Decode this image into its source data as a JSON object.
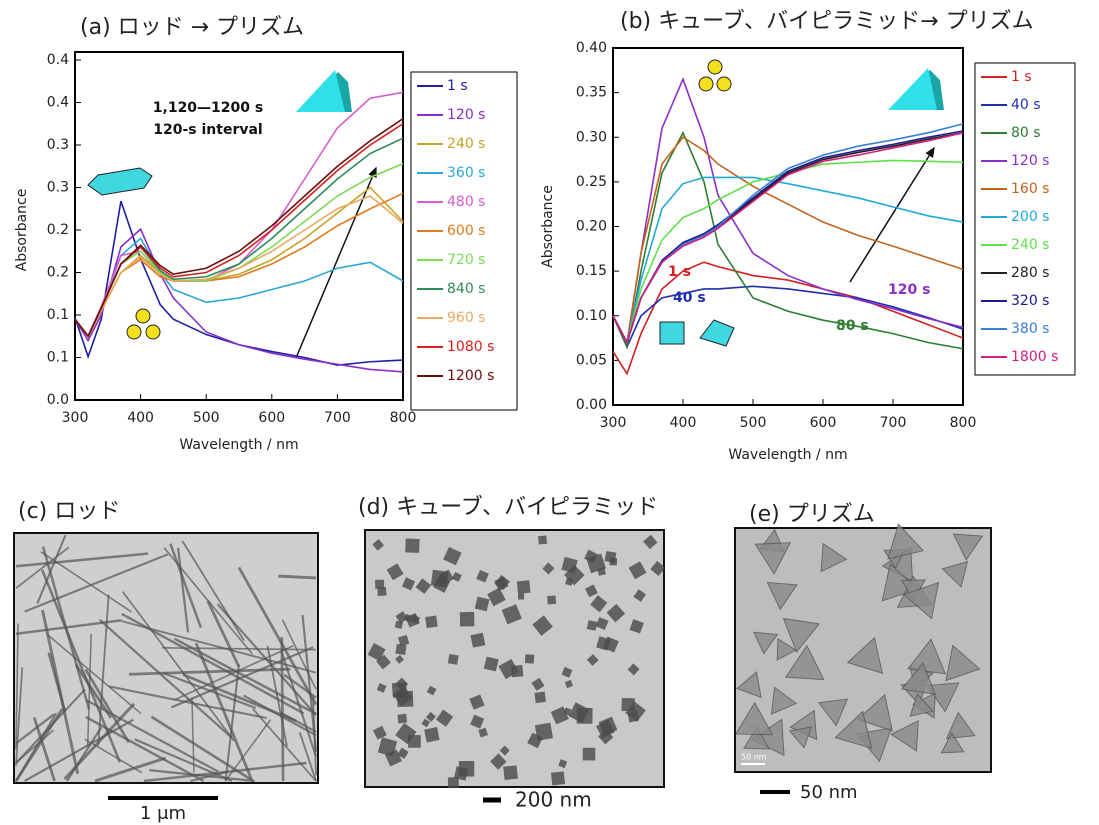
{
  "chart_data": [
    {
      "type": "line",
      "title": "(a) ロッド → プリズム",
      "x_label": "Wavelength / nm",
      "y_label": "Absorbance",
      "x": [
        300,
        320,
        340,
        370,
        400,
        430,
        450,
        500,
        550,
        600,
        650,
        700,
        750,
        800
      ],
      "xlim": [
        300,
        800
      ],
      "xticks": [
        300,
        400,
        500,
        600,
        700,
        800
      ],
      "ylim": [
        0,
        0.4
      ],
      "yticks": [
        {
          "value": 0,
          "label": "0.0"
        },
        {
          "value": 0.05,
          "label": "0.1"
        },
        0.1,
        {
          "value": 0.15,
          "label": "0.2"
        },
        0.2,
        {
          "value": 0.25,
          "label": "0.3"
        },
        0.3,
        {
          "value": 0.35,
          "label": "0.4"
        },
        0.4
      ],
      "series": [
        {
          "name": "1 s",
          "color": "#1f1fa0",
          "values": [
            0.097,
            0.051,
            0.095,
            0.234,
            0.166,
            0.112,
            0.095,
            0.077,
            0.065,
            0.057,
            0.05,
            0.041,
            0.045,
            0.047
          ]
        },
        {
          "name": "120 s",
          "color": "#8b2fc9",
          "values": [
            0.095,
            0.07,
            0.1,
            0.18,
            0.201,
            0.148,
            0.12,
            0.08,
            0.065,
            0.055,
            0.048,
            0.042,
            0.036,
            0.033
          ]
        },
        {
          "name": "240 s",
          "color": "#c9a227",
          "values": [
            0.095,
            0.075,
            0.105,
            0.15,
            0.17,
            0.15,
            0.14,
            0.14,
            0.148,
            0.165,
            0.19,
            0.22,
            0.25,
            0.21
          ]
        },
        {
          "name": "360 s",
          "color": "#2aa7d6",
          "values": [
            0.095,
            0.075,
            0.105,
            0.17,
            0.19,
            0.15,
            0.13,
            0.115,
            0.12,
            0.13,
            0.14,
            0.155,
            0.162,
            0.14
          ]
        },
        {
          "name": "480 s",
          "color": "#d65ccf",
          "values": [
            0.095,
            0.075,
            0.11,
            0.17,
            0.175,
            0.15,
            0.14,
            0.14,
            0.16,
            0.2,
            0.26,
            0.32,
            0.355,
            0.362
          ]
        },
        {
          "name": "600 s",
          "color": "#e07b20",
          "values": [
            0.095,
            0.075,
            0.105,
            0.15,
            0.165,
            0.145,
            0.14,
            0.14,
            0.145,
            0.16,
            0.18,
            0.205,
            0.225,
            0.243
          ]
        },
        {
          "name": "720 s",
          "color": "#7ed957",
          "values": [
            0.095,
            0.075,
            0.108,
            0.16,
            0.175,
            0.15,
            0.14,
            0.14,
            0.155,
            0.18,
            0.21,
            0.24,
            0.262,
            0.278
          ]
        },
        {
          "name": "840 s",
          "color": "#2e8b57",
          "values": [
            0.095,
            0.075,
            0.108,
            0.16,
            0.18,
            0.152,
            0.142,
            0.145,
            0.16,
            0.19,
            0.225,
            0.26,
            0.29,
            0.308
          ]
        },
        {
          "name": "960 s",
          "color": "#e8a860",
          "values": [
            0.095,
            0.075,
            0.105,
            0.15,
            0.168,
            0.148,
            0.14,
            0.142,
            0.155,
            0.175,
            0.2,
            0.225,
            0.24,
            0.208
          ]
        },
        {
          "name": "1080 s",
          "color": "#d42020",
          "values": [
            0.095,
            0.075,
            0.108,
            0.16,
            0.18,
            0.155,
            0.145,
            0.15,
            0.17,
            0.2,
            0.235,
            0.27,
            0.3,
            0.325
          ]
        },
        {
          "name": "1200 s",
          "color": "#6b1010",
          "values": [
            0.095,
            0.075,
            0.108,
            0.16,
            0.182,
            0.158,
            0.148,
            0.155,
            0.175,
            0.205,
            0.24,
            0.275,
            0.305,
            0.331
          ]
        }
      ],
      "annotations": [
        {
          "text": "1,120—1200 s",
          "color": "#111111"
        },
        {
          "text": "120-s interval",
          "color": "#111111"
        }
      ]
    },
    {
      "type": "line",
      "title": "(b) キューブ、バイピラミッド→ プリズム",
      "x_label": "Wavelength / nm",
      "y_label": "Absorbance",
      "x": [
        300,
        320,
        340,
        370,
        400,
        430,
        450,
        500,
        550,
        600,
        650,
        700,
        750,
        800
      ],
      "xlim": [
        300,
        800
      ],
      "xticks": [
        300,
        400,
        500,
        600,
        700,
        800
      ],
      "ylim": [
        0,
        0.4
      ],
      "yticks": [
        {
          "value": 0,
          "label": "0.00"
        },
        0.05,
        {
          "value": 0.1,
          "label": "0.10"
        },
        0.15,
        {
          "value": 0.2,
          "label": "0.20"
        },
        0.25,
        {
          "value": 0.3,
          "label": "0.30"
        },
        0.35,
        {
          "value": 0.4,
          "label": "0.40"
        }
      ],
      "series": [
        {
          "name": "1 s",
          "color": "#d42020",
          "values": [
            0.06,
            0.035,
            0.08,
            0.13,
            0.15,
            0.16,
            0.155,
            0.145,
            0.14,
            0.13,
            0.12,
            0.105,
            0.09,
            0.075
          ]
        },
        {
          "name": "40 s",
          "color": "#1f2fb0",
          "values": [
            0.1,
            0.065,
            0.1,
            0.12,
            0.125,
            0.13,
            0.13,
            0.133,
            0.13,
            0.125,
            0.12,
            0.11,
            0.098,
            0.085
          ]
        },
        {
          "name": "80 s",
          "color": "#2e7d32",
          "values": [
            0.1,
            0.065,
            0.15,
            0.26,
            0.305,
            0.25,
            0.18,
            0.12,
            0.105,
            0.095,
            0.088,
            0.08,
            0.07,
            0.063
          ]
        },
        {
          "name": "120 s",
          "color": "#8b2fc9",
          "values": [
            0.1,
            0.07,
            0.17,
            0.31,
            0.365,
            0.3,
            0.235,
            0.17,
            0.145,
            0.13,
            0.118,
            0.108,
            0.097,
            0.087
          ]
        },
        {
          "name": "160 s",
          "color": "#c0641e",
          "values": [
            0.1,
            0.07,
            0.17,
            0.27,
            0.3,
            0.285,
            0.27,
            0.245,
            0.225,
            0.205,
            0.19,
            0.178,
            0.165,
            0.152
          ]
        },
        {
          "name": "200 s",
          "color": "#20a8d8",
          "values": [
            0.1,
            0.07,
            0.14,
            0.22,
            0.248,
            0.255,
            0.255,
            0.255,
            0.248,
            0.24,
            0.232,
            0.222,
            0.212,
            0.205
          ]
        },
        {
          "name": "240 s",
          "color": "#5ee04a",
          "values": [
            0.1,
            0.07,
            0.13,
            0.185,
            0.21,
            0.22,
            0.23,
            0.25,
            0.26,
            0.27,
            0.272,
            0.274,
            0.273,
            0.272
          ]
        },
        {
          "name": "280 s",
          "color": "#222222",
          "values": [
            0.1,
            0.07,
            0.12,
            0.16,
            0.18,
            0.19,
            0.2,
            0.23,
            0.26,
            0.275,
            0.283,
            0.29,
            0.298,
            0.305
          ]
        },
        {
          "name": "320 s",
          "color": "#1a1a8c",
          "values": [
            0.1,
            0.07,
            0.12,
            0.162,
            0.182,
            0.192,
            0.202,
            0.232,
            0.262,
            0.277,
            0.285,
            0.292,
            0.3,
            0.307
          ]
        },
        {
          "name": "380 s",
          "color": "#3a7fd8",
          "values": [
            0.1,
            0.07,
            0.12,
            0.16,
            0.18,
            0.19,
            0.2,
            0.235,
            0.265,
            0.28,
            0.29,
            0.297,
            0.305,
            0.315
          ]
        },
        {
          "name": "1800 s",
          "color": "#d81b80",
          "values": [
            0.1,
            0.07,
            0.12,
            0.16,
            0.178,
            0.188,
            0.198,
            0.228,
            0.258,
            0.273,
            0.28,
            0.288,
            0.296,
            0.305
          ]
        }
      ],
      "annotations": [
        {
          "text": "1 s",
          "color": "#d42020"
        },
        {
          "text": "40 s",
          "color": "#1f2fb0"
        },
        {
          "text": "80 s",
          "color": "#2e7d32"
        },
        {
          "text": "120 s",
          "color": "#8b2fc9"
        }
      ]
    }
  ],
  "panels": [
    {
      "label": "(c) ロッド",
      "scale_bar": "1 μm"
    },
    {
      "label": "(d) キューブ、バイピラミッド",
      "scale_bar": "200 nm"
    },
    {
      "label": "(e) プリズム",
      "scale_bar": "50 nm",
      "inset_scale": "50 nm"
    }
  ]
}
